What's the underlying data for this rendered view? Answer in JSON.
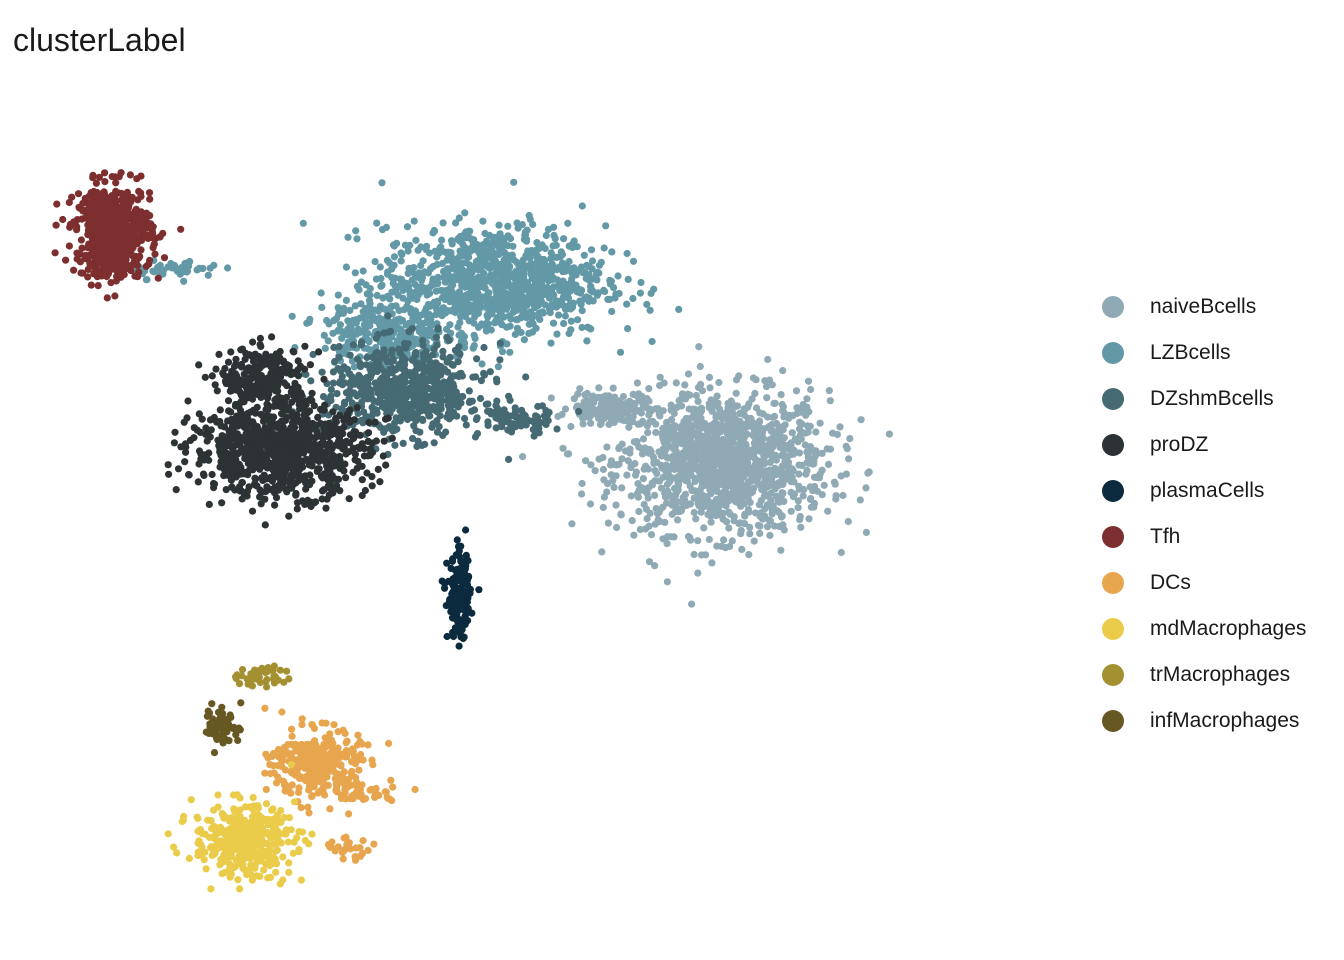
{
  "chart_data": {
    "type": "scatter",
    "title": "clusterLabel",
    "xlabel": "",
    "ylabel": "",
    "grid": false,
    "axes_visible": false,
    "legend_position": "right",
    "xlim": [
      0,
      100
    ],
    "ylim": [
      0,
      100
    ],
    "series": [
      {
        "name": "naiveBcells",
        "color": "#8FA9B5",
        "clusters": [
          {
            "center": [
              67.5,
              54.5
            ],
            "spread": [
              8.5,
              7.0
            ],
            "n": 1300
          },
          {
            "center": [
              56.5,
              61.0
            ],
            "spread": [
              3.0,
              1.5
            ],
            "n": 160
          }
        ]
      },
      {
        "name": "LZBcells",
        "color": "#6399A6",
        "clusters": [
          {
            "center": [
              45.5,
              76.0
            ],
            "spread": [
              9.0,
              5.5
            ],
            "n": 1000
          },
          {
            "center": [
              35.0,
              70.0
            ],
            "spread": [
              5.0,
              3.5
            ],
            "n": 280
          },
          {
            "center": [
              15.0,
              77.5
            ],
            "spread": [
              3.5,
              0.9
            ],
            "n": 45
          }
        ]
      },
      {
        "name": "DZshmBcells",
        "color": "#466A73",
        "clusters": [
          {
            "center": [
              37.0,
              63.0
            ],
            "spread": [
              6.5,
              4.5
            ],
            "n": 650
          },
          {
            "center": [
              47.5,
              59.5
            ],
            "spread": [
              3.0,
              1.5
            ],
            "n": 70
          }
        ]
      },
      {
        "name": "proDZ",
        "color": "#2D3235",
        "clusters": [
          {
            "center": [
              25.0,
              56.0
            ],
            "spread": [
              7.0,
              4.5
            ],
            "n": 900
          },
          {
            "center": [
              23.5,
              64.5
            ],
            "spread": [
              3.5,
              3.0
            ],
            "n": 250
          }
        ]
      },
      {
        "name": "plasmaCells",
        "color": "#0C2A3E",
        "clusters": [
          {
            "center": [
              42.2,
              38.5
            ],
            "spread": [
              0.9,
              4.0
            ],
            "n": 170
          }
        ]
      },
      {
        "name": "Tfh",
        "color": "#7D2E2E",
        "clusters": [
          {
            "center": [
              9.0,
              82.0
            ],
            "spread": [
              3.0,
              4.5
            ],
            "n": 650
          }
        ]
      },
      {
        "name": "DCs",
        "color": "#E7A64E",
        "clusters": [
          {
            "center": [
              28.5,
              18.5
            ],
            "spread": [
              3.5,
              3.5
            ],
            "n": 300
          },
          {
            "center": [
              33.0,
              15.0
            ],
            "spread": [
              3.0,
              1.0
            ],
            "n": 40
          },
          {
            "center": [
              31.0,
              8.5
            ],
            "spread": [
              2.5,
              1.0
            ],
            "n": 25
          }
        ]
      },
      {
        "name": "mdMacrophages",
        "color": "#EACC4A",
        "clusters": [
          {
            "center": [
              21.5,
              9.5
            ],
            "spread": [
              4.0,
              3.5
            ],
            "n": 380
          }
        ]
      },
      {
        "name": "trMacrophages",
        "color": "#A39030",
        "clusters": [
          {
            "center": [
              23.5,
              29.0
            ],
            "spread": [
              2.0,
              1.2
            ],
            "n": 45
          }
        ]
      },
      {
        "name": "infMacrophages",
        "color": "#675823",
        "clusters": [
          {
            "center": [
              19.5,
              23.0
            ],
            "spread": [
              1.5,
              2.0
            ],
            "n": 55
          }
        ]
      }
    ]
  }
}
